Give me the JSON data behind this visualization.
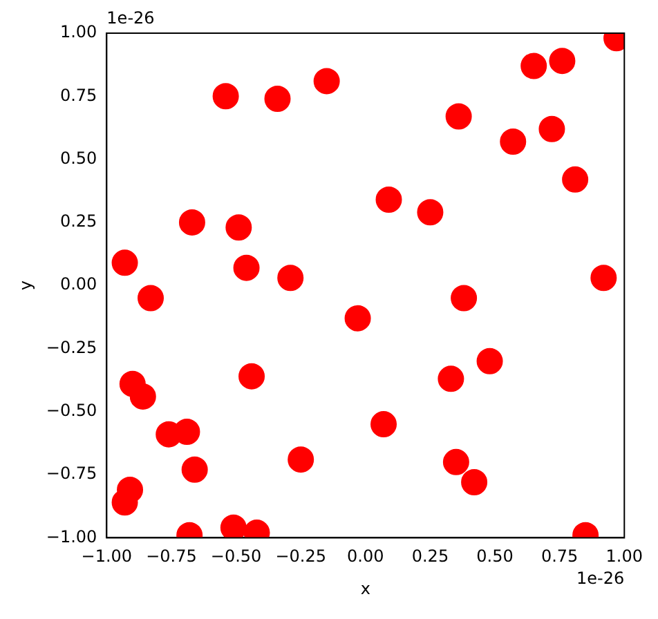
{
  "chart_data": {
    "type": "scatter",
    "xlabel": "x",
    "ylabel": "y",
    "marker": "circle",
    "grid": false,
    "xlim": [
      -1,
      1
    ],
    "ylim": [
      -1,
      1
    ],
    "xticks": [
      {
        "value": -1,
        "label": "−1.00"
      },
      {
        "value": -0.75,
        "label": "−0.75"
      },
      {
        "value": -0.5,
        "label": "−0.50"
      },
      {
        "value": -0.25,
        "label": "−0.25"
      },
      {
        "value": 0,
        "label": "0.00"
      },
      {
        "value": 0.25,
        "label": "0.25"
      },
      {
        "value": 0.5,
        "label": "0.50"
      },
      {
        "value": 0.75,
        "label": "0.75"
      },
      {
        "value": 1,
        "label": "1.00"
      }
    ],
    "yticks": [
      {
        "value": -1,
        "label": "−1.00"
      },
      {
        "value": -0.75,
        "label": "−0.75"
      },
      {
        "value": -0.5,
        "label": "−0.50"
      },
      {
        "value": -0.25,
        "label": "−0.25"
      },
      {
        "value": 0,
        "label": "0.00"
      },
      {
        "value": 0.25,
        "label": "0.25"
      },
      {
        "value": 0.5,
        "label": "0.50"
      },
      {
        "value": 0.75,
        "label": "0.75"
      },
      {
        "value": 1,
        "label": "1.00"
      }
    ],
    "annotations": [
      "1e-26",
      "1e-26"
    ],
    "series": [
      {
        "color": "#ff0000",
        "x": [
          -0.93,
          -0.93,
          -0.91,
          -0.9,
          -0.86,
          -0.83,
          -0.76,
          -0.69,
          -0.68,
          -0.66,
          -0.67,
          -0.54,
          -0.49,
          -0.46,
          -0.51,
          -0.42,
          -0.44,
          -0.34,
          -0.29,
          -0.25,
          -0.15,
          -0.03,
          0.07,
          0.09,
          0.25,
          0.33,
          0.35,
          0.36,
          0.38,
          0.42,
          0.48,
          0.57,
          0.65,
          0.72,
          0.76,
          0.81,
          0.85,
          0.92,
          0.97
        ],
        "values": [
          0.09,
          -0.86,
          -0.81,
          -0.39,
          -0.44,
          -0.05,
          -0.59,
          -0.58,
          -0.99,
          -0.73,
          0.25,
          0.75,
          0.23,
          0.07,
          -0.96,
          -0.98,
          -0.36,
          0.74,
          0.03,
          -0.69,
          0.81,
          -0.13,
          -0.55,
          0.34,
          0.29,
          -0.37,
          -0.7,
          0.67,
          -0.05,
          -0.78,
          -0.3,
          0.57,
          0.87,
          0.62,
          0.89,
          0.42,
          -0.99,
          0.03,
          0.98
        ]
      }
    ]
  }
}
